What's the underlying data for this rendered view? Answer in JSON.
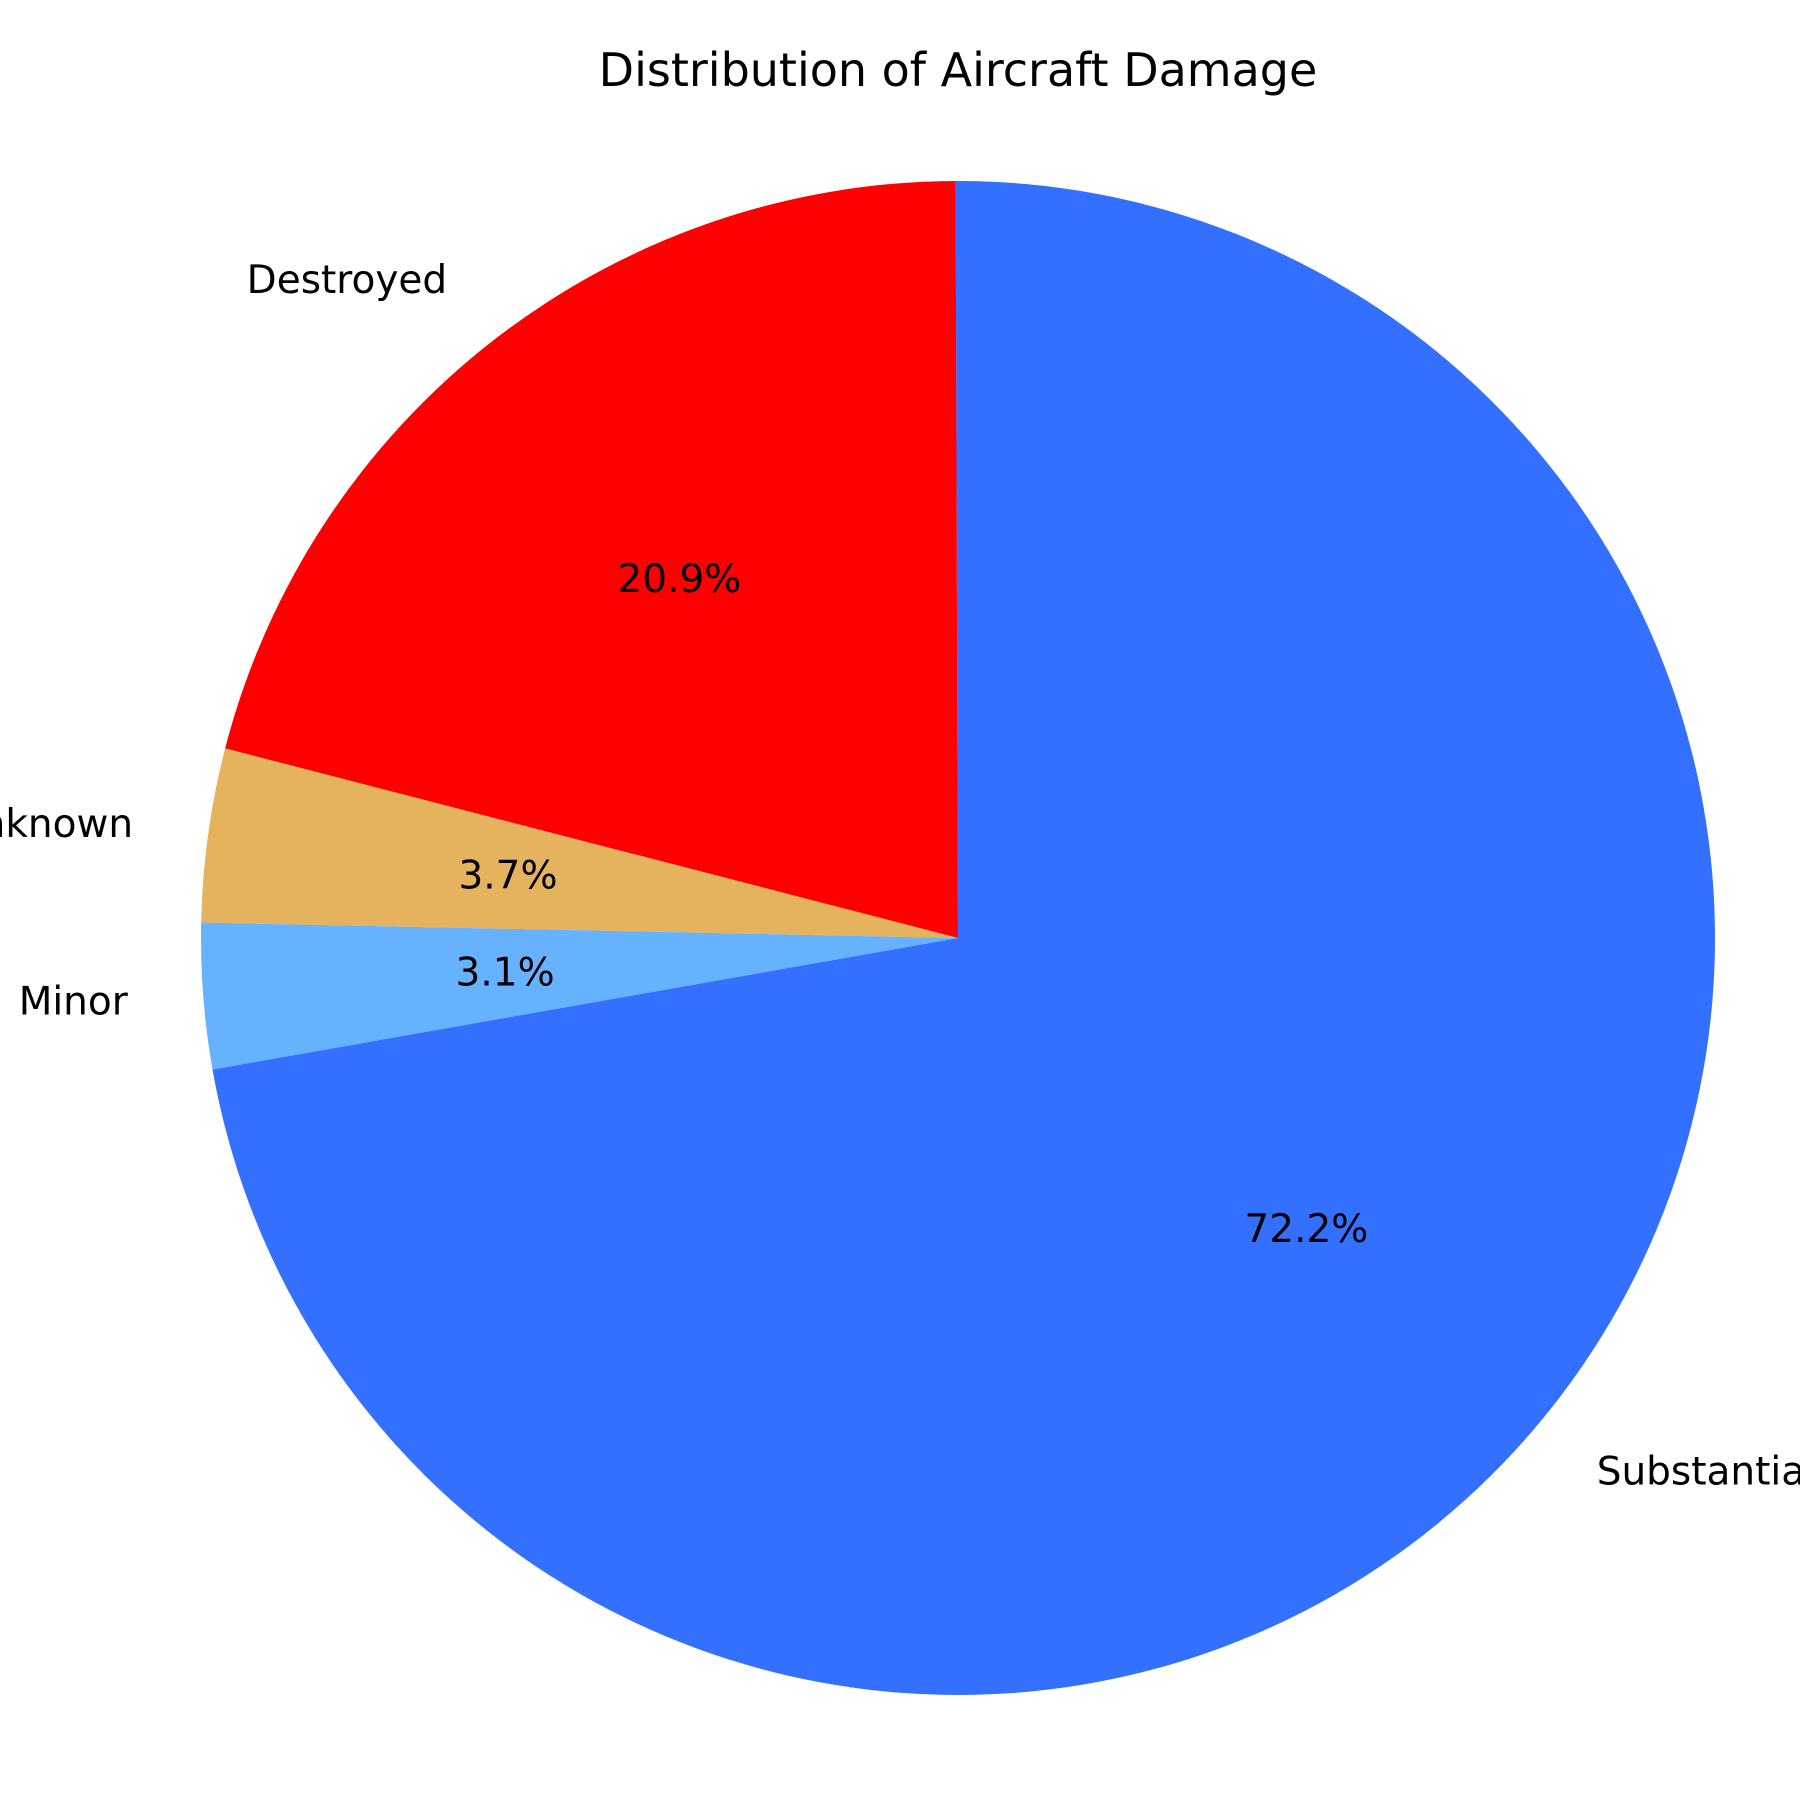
{
  "chart_data": {
    "type": "pie",
    "title": "Distribution of Aircraft Damage",
    "slices": [
      {
        "label": "Substantial",
        "value": 72.2,
        "display": "72.2%",
        "color": "#3370ff"
      },
      {
        "label": "Destroyed",
        "value": 20.9,
        "display": "20.9%",
        "color": "#ff0000"
      },
      {
        "label": "Unknown",
        "value": 3.7,
        "display": "3.7%",
        "color": "#e5b25d"
      },
      {
        "label": "Minor",
        "value": 3.1,
        "display": "3.1%",
        "color": "#66b2ff"
      }
    ],
    "start_angle_deg": 190,
    "direction": "counterclockwise",
    "legend": "none"
  }
}
